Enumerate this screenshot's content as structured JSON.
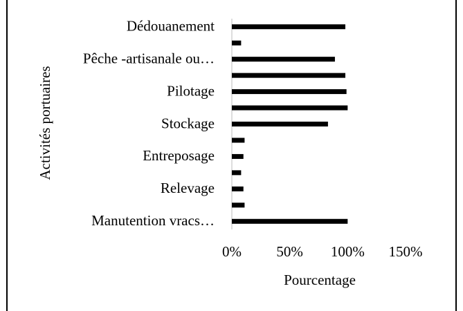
{
  "chart_data": {
    "type": "bar",
    "orientation": "horizontal",
    "y_label": "Activités portuaires",
    "x_label": "Pourcentage",
    "categories": [
      "Dédouanement",
      null,
      "Pêche -artisanale ou…",
      null,
      "Pilotage",
      null,
      "Stockage",
      null,
      "Entreposage",
      null,
      "Relevage",
      null,
      "Manutention vracs…"
    ],
    "values": [
      98,
      8,
      89,
      98,
      99,
      100,
      83,
      11,
      10,
      8,
      10,
      11,
      100
    ],
    "color": "#000000",
    "xlim": [
      0,
      150
    ],
    "xticks": [
      {
        "value": 0,
        "label": "0%"
      },
      {
        "value": 50,
        "label": "50%"
      },
      {
        "value": 100,
        "label": "100%"
      },
      {
        "value": 150,
        "label": "150%"
      }
    ],
    "grid": false
  }
}
